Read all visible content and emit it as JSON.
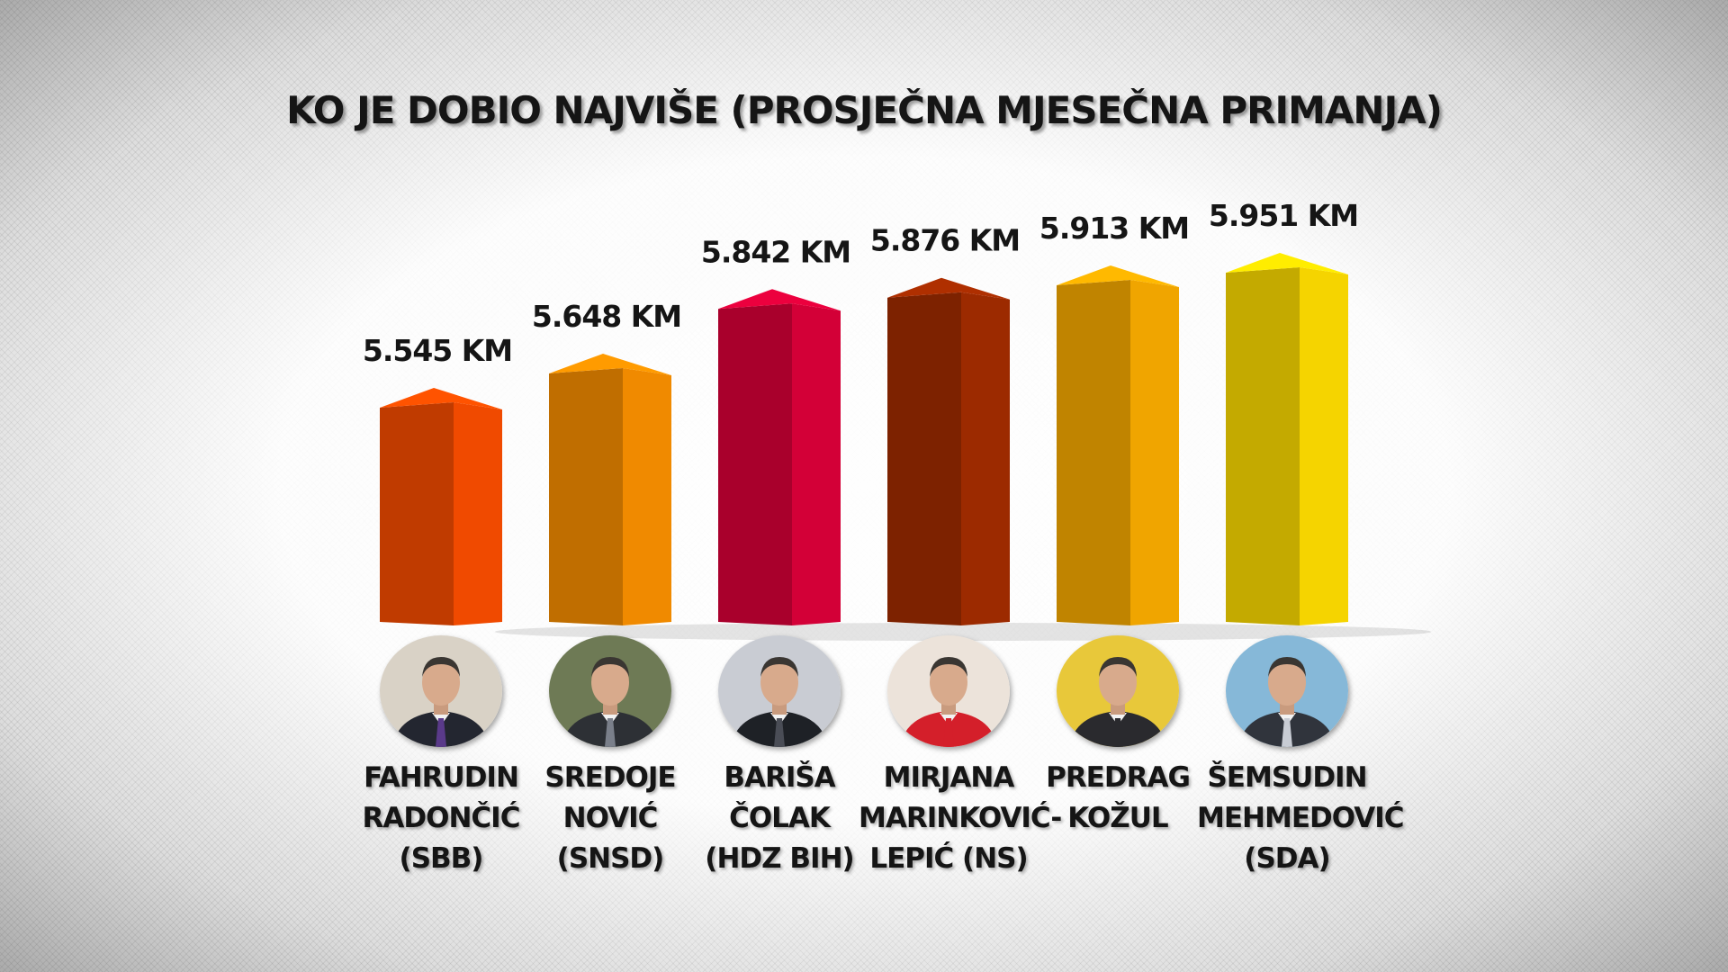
{
  "chart_data": {
    "type": "bar",
    "title": "KO JE DOBIO NAJVIŠE (PROSJEČNA MJESEČNA PRIMANJA)",
    "categories": [
      "FAHRUDIN RADONČIĆ (SBB)",
      "SREDOJE NOVIĆ (SNSD)",
      "BARIŠA ČOLAK (HDZ BIH)",
      "MIRJANA MARINKOVIĆ- LEPIĆ (NS)",
      "PREDRAG KOŽUL",
      "ŠEMSUDIN MEHMEDOVIĆ (SDA)"
    ],
    "values": [
      5545,
      5648,
      5842,
      5876,
      5913,
      5951
    ],
    "value_labels": [
      "5.545 KM",
      "5.648 KM",
      "5.842 KM",
      "5.876 KM",
      "5.913 KM",
      "5.951 KM"
    ],
    "xlabel": "",
    "ylabel": "",
    "grid": false,
    "legend": "none"
  },
  "bars": [
    {
      "name_lines": [
        "FAHRUDIN",
        "RADONČIĆ",
        "(SBB)"
      ],
      "color": "#f04a00",
      "avatar_icon": "portrait-photo-icon",
      "photo_bg": "#d9d2c6",
      "suit": "#232630",
      "tie": "#5a3a8a"
    },
    {
      "name_lines": [
        "SREDOJE",
        "NOVIĆ",
        "(SNSD)"
      ],
      "color": "#f08a00",
      "avatar_icon": "portrait-photo-icon",
      "photo_bg": "#6e7a55",
      "suit": "#2d3035",
      "tie": "#7a7f8a"
    },
    {
      "name_lines": [
        "BARIŠA",
        "ČOLAK",
        "(HDZ BIH)"
      ],
      "color": "#d30037",
      "avatar_icon": "portrait-photo-icon",
      "photo_bg": "#c9ccd3",
      "suit": "#1e2126",
      "tie": "#4a4d56"
    },
    {
      "name_lines": [
        "MIRJANA",
        "MARINKOVIĆ-",
        "LEPIĆ (NS)"
      ],
      "color": "#9c2a00",
      "avatar_icon": "portrait-photo-icon",
      "photo_bg": "#ece3da",
      "suit": "#d41f2a",
      "tie": "#d41f2a"
    },
    {
      "name_lines": [
        "PREDRAG",
        "KOŽUL",
        ""
      ],
      "color": "#f0a500",
      "avatar_icon": "portrait-photo-icon",
      "photo_bg": "#e8c83a",
      "suit": "#2a2a2e",
      "tie": "#2a2a2e"
    },
    {
      "name_lines": [
        "ŠEMSUDIN",
        "MEHMEDOVIĆ",
        "(SDA)"
      ],
      "color": "#f5d400",
      "avatar_icon": "portrait-photo-icon",
      "photo_bg": "#86b8d8",
      "suit": "#30343c",
      "tie": "#c8ccd4"
    }
  ]
}
